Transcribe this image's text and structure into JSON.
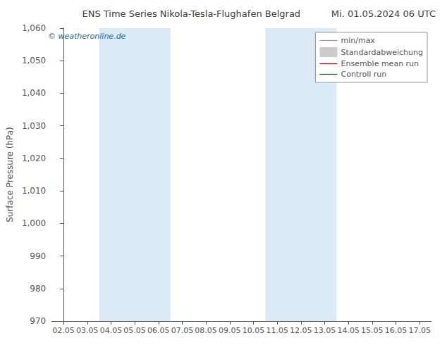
{
  "chart_data": {
    "type": "line",
    "title": "ENS Time Series Nikola-Tesla-Flughafen Belgrad",
    "subtitle": "Mi. 01.05.2024 06 UTC",
    "ylabel": "Surface Pressure (hPa)",
    "annotations": [
      {
        "text": "© weatheronline.de",
        "color": "#1a6699"
      }
    ],
    "categories": [
      "02.05",
      "03.05",
      "04.05",
      "05.05",
      "06.05",
      "07.05",
      "08.05",
      "09.05",
      "10.05",
      "11.05",
      "12.05",
      "13.05",
      "14.05",
      "15.05",
      "16.05",
      "17.05"
    ],
    "bands": [
      {
        "start": "04.05",
        "end": "06.05",
        "color": "#daeaf7"
      },
      {
        "start": "11.05",
        "end": "13.05",
        "color": "#daeaf7"
      }
    ],
    "series": [
      {
        "name": "min/max",
        "color": "#999999",
        "marker": "line",
        "values": [
          null,
          null,
          null,
          null,
          null,
          null,
          null,
          null,
          null,
          null,
          null,
          null,
          null,
          null,
          null,
          null
        ]
      },
      {
        "name": "Standardabweichung",
        "color": "#cccccc",
        "marker": "rect",
        "values": [
          null,
          null,
          null,
          null,
          null,
          null,
          null,
          null,
          null,
          null,
          null,
          null,
          null,
          null,
          null,
          null
        ]
      },
      {
        "name": "Ensemble mean run",
        "color": "#cc0000",
        "marker": "line",
        "values": [
          null,
          null,
          null,
          null,
          null,
          null,
          null,
          null,
          null,
          null,
          null,
          null,
          null,
          null,
          null,
          null
        ]
      },
      {
        "name": "Controll run",
        "color": "#006600",
        "marker": "line",
        "values": [
          null,
          null,
          null,
          null,
          null,
          null,
          null,
          null,
          null,
          null,
          null,
          null,
          null,
          null,
          null,
          null
        ]
      }
    ],
    "ylim": [
      970,
      1060
    ],
    "yticks": [
      970,
      980,
      990,
      1000,
      1010,
      1020,
      1030,
      1040,
      1050,
      1060
    ],
    "grid": false,
    "legend": "upper right"
  }
}
